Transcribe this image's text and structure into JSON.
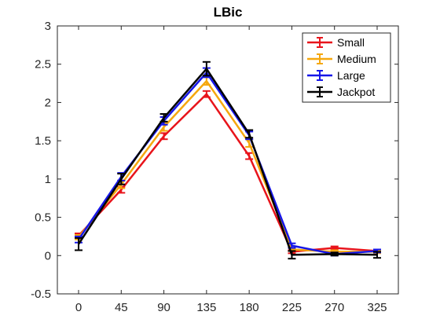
{
  "chart_data": {
    "type": "line",
    "title": "LBic",
    "xlabel": "",
    "ylabel": "",
    "categories": [
      "0",
      "45",
      "90",
      "135",
      "180",
      "225",
      "270",
      "325"
    ],
    "ylim": [
      -0.5,
      3
    ],
    "yticks": [
      "-0.5",
      "0",
      "0.5",
      "1",
      "1.5",
      "2",
      "2.5",
      "3"
    ],
    "grid": false,
    "legend_position": "top-right",
    "series": [
      {
        "name": "Small",
        "color": "#e8141b",
        "values": [
          0.26,
          0.86,
          1.56,
          2.11,
          1.3,
          0.05,
          0.1,
          0.06
        ],
        "errors": [
          0.03,
          0.04,
          0.04,
          0.04,
          0.04,
          0.02,
          0.02,
          0.02
        ]
      },
      {
        "name": "Medium",
        "color": "#f5a80f",
        "values": [
          0.24,
          0.93,
          1.68,
          2.28,
          1.47,
          0.08,
          0.05,
          0.05
        ],
        "errors": [
          0.03,
          0.05,
          0.05,
          0.05,
          0.05,
          0.02,
          0.02,
          0.02
        ]
      },
      {
        "name": "Large",
        "color": "#1616e8",
        "values": [
          0.21,
          1.03,
          1.76,
          2.39,
          1.57,
          0.13,
          0.02,
          0.06
        ],
        "errors": [
          0.04,
          0.05,
          0.05,
          0.06,
          0.05,
          0.03,
          0.02,
          0.02
        ]
      },
      {
        "name": "Jackpot",
        "color": "#000000",
        "values": [
          0.15,
          1.0,
          1.8,
          2.44,
          1.59,
          0.01,
          0.02,
          0.01
        ],
        "errors": [
          0.08,
          0.07,
          0.05,
          0.09,
          0.05,
          0.05,
          0.02,
          0.04
        ]
      }
    ]
  }
}
